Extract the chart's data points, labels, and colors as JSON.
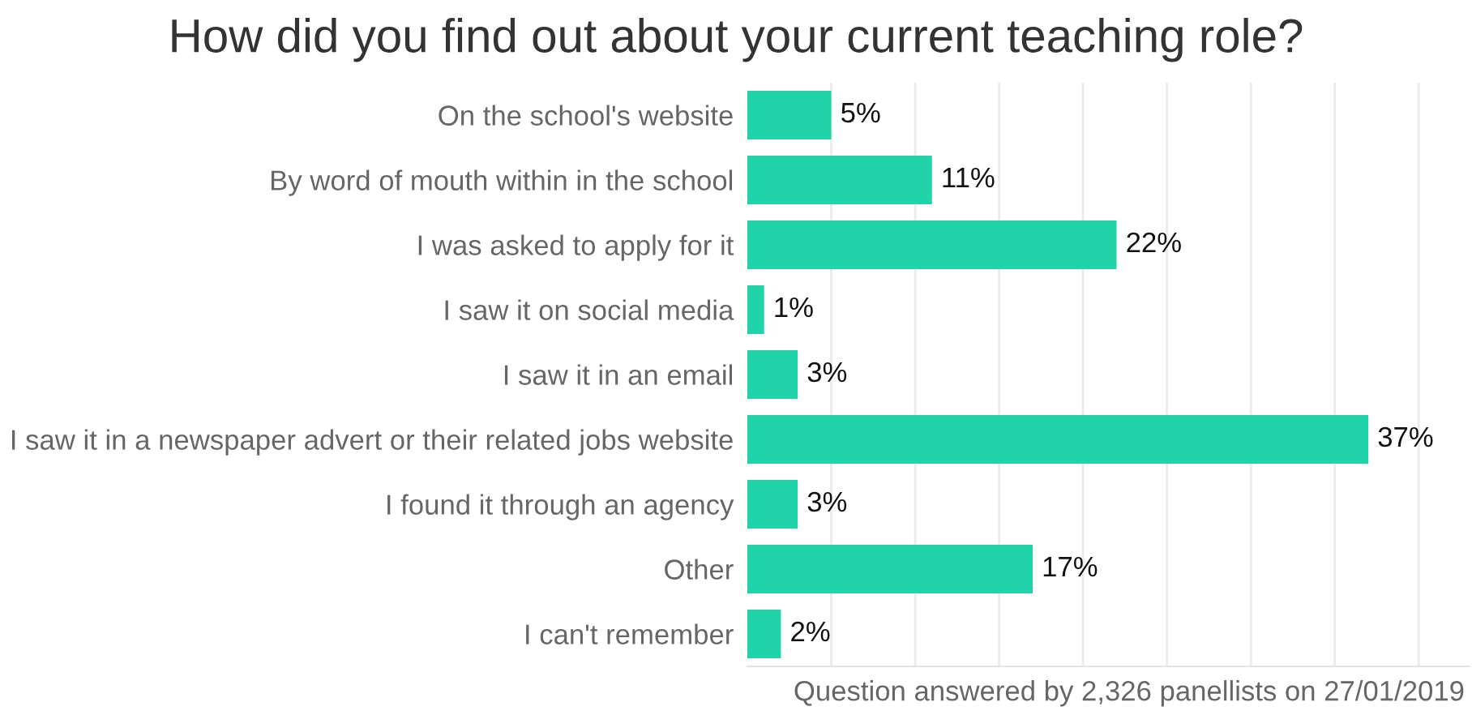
{
  "chart_data": {
    "type": "bar",
    "orientation": "horizontal",
    "title": "How did you find out about your current teaching role?",
    "categories": [
      "On the school's website",
      "By word of mouth within in the school",
      "I was asked to apply for it",
      "I saw it on social media",
      "I saw it in an email",
      "I saw it in a newspaper advert or their related jobs website",
      "I found it through an agency",
      "Other",
      "I can't remember"
    ],
    "values": [
      5,
      11,
      22,
      1,
      3,
      37,
      3,
      17,
      2
    ],
    "value_labels": [
      "5%",
      "11%",
      "22%",
      "1%",
      "3%",
      "37%",
      "3%",
      "17%",
      "2%"
    ],
    "color": "#21d3a9",
    "xlim": [
      0,
      43
    ],
    "xticks": [
      {
        "value": 5,
        "label": null
      },
      {
        "value": 10,
        "label": null
      },
      {
        "value": 15,
        "label": null
      },
      {
        "value": 20,
        "label": null
      },
      {
        "value": 25,
        "label": null
      },
      {
        "value": 30,
        "label": null
      },
      {
        "value": 35,
        "label": null
      },
      {
        "value": 40,
        "label": null
      }
    ],
    "grid": "x",
    "tick_labels": "y",
    "annotations": [
      "Question answered by 2,326 panellists on 27/01/2019"
    ]
  }
}
